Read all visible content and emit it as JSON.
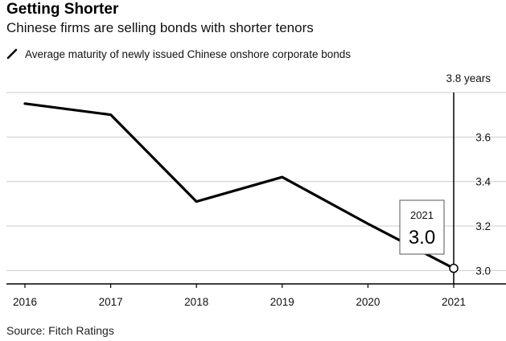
{
  "header": {
    "title": "Getting Shorter",
    "subtitle": "Chinese firms are selling bonds with shorter tenors"
  },
  "legend": {
    "label": "Average maturity of newly issued Chinese onshore corporate bonds"
  },
  "footer": {
    "source": "Source: Fitch Ratings"
  },
  "colors": {
    "line": "#000000",
    "grid": "#cccccc",
    "axis": "#000000"
  },
  "chart_data": {
    "type": "line",
    "title": "Getting Shorter",
    "subtitle": "Chinese firms are selling bonds with shorter tenors",
    "xlabel": "",
    "ylabel": "years",
    "x": [
      2016,
      2017,
      2018,
      2019,
      2020,
      2021
    ],
    "series": [
      {
        "name": "Average maturity of newly issued Chinese onshore corporate bonds",
        "values": [
          3.75,
          3.7,
          3.31,
          3.42,
          3.21,
          3.01
        ]
      }
    ],
    "ylim": [
      2.94,
      3.8
    ],
    "yticks": [
      3.0,
      3.2,
      3.4,
      3.6
    ],
    "ytick_labels": [
      "3.0",
      "3.2",
      "3.4",
      "3.6"
    ],
    "top_label": "3.8 years",
    "xtick_labels": [
      "2016",
      "2017",
      "2018",
      "2019",
      "2020",
      "2021"
    ],
    "annotation": {
      "year": "2021",
      "value": "3.0"
    },
    "grid": true
  }
}
